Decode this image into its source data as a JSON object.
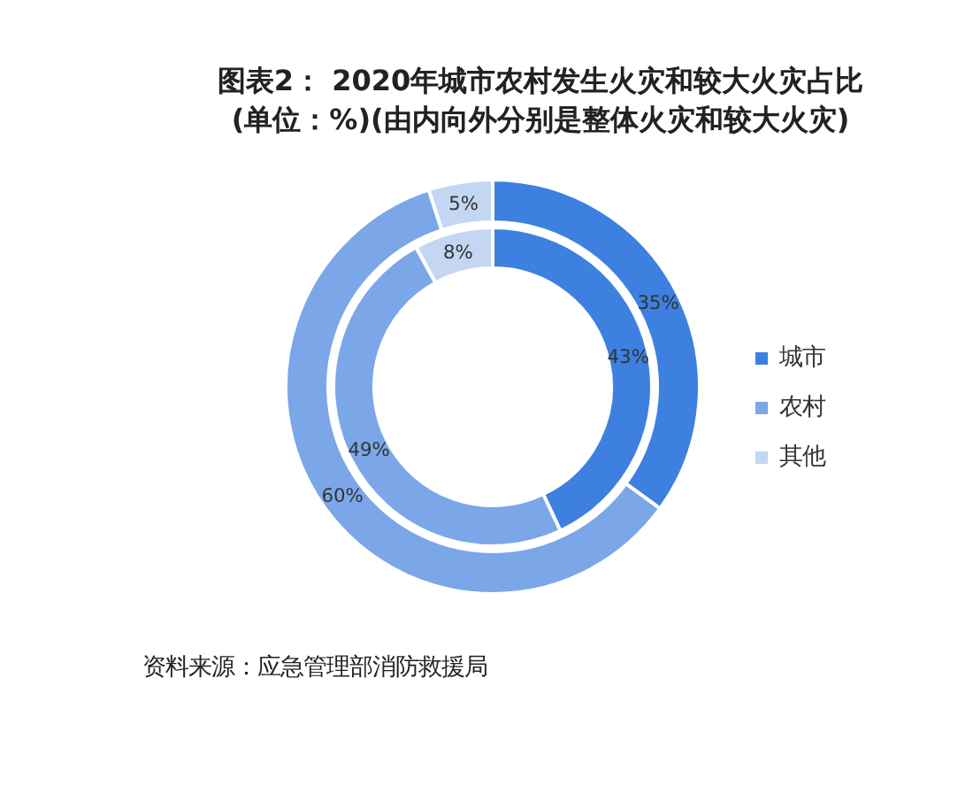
{
  "chart_data": {
    "type": "donut",
    "title": "图表2： 2020年城市农村发生火灾和较大火灾占比",
    "subtitle": "(单位：%)(由内向外分别是整体火灾和较大火灾)",
    "categories": [
      "城市",
      "农村",
      "其他"
    ],
    "colors": [
      "#3d80e0",
      "#7ba7e8",
      "#c3d6f2"
    ],
    "series": [
      {
        "values": [
          43,
          49,
          8
        ],
        "value_labels": [
          "43%",
          "49%",
          "8%"
        ]
      },
      {
        "values": [
          35,
          60,
          5
        ],
        "value_labels": [
          "35%",
          "60%",
          "5%"
        ]
      }
    ],
    "legend": "right",
    "annotations": [
      "资料来源：应急管理部消防救援局"
    ]
  }
}
